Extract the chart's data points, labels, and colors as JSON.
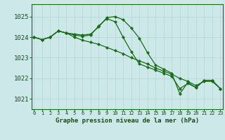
{
  "background_color": "#cce8e8",
  "grid_color": "#b8d8d8",
  "line_color": "#1a6b1a",
  "marker_color": "#1a6b1a",
  "title": "Graphe pression niveau de la mer (hPa)",
  "xlabel_hours": [
    0,
    1,
    2,
    3,
    4,
    5,
    6,
    7,
    8,
    9,
    10,
    11,
    12,
    13,
    14,
    15,
    16,
    17,
    18,
    19,
    20,
    21,
    22,
    23
  ],
  "yticks": [
    1021,
    1022,
    1023,
    1024,
    1025
  ],
  "ylim": [
    1020.5,
    1025.6
  ],
  "xlim": [
    -0.3,
    23.3
  ],
  "series": [
    [
      1024.0,
      1023.88,
      1024.0,
      1024.3,
      1024.2,
      1024.15,
      1024.1,
      1024.15,
      1024.5,
      1024.95,
      1025.0,
      1024.85,
      1024.45,
      1023.95,
      1023.25,
      1022.65,
      1022.45,
      1022.25,
      1021.25,
      1021.8,
      1021.55,
      1021.9,
      1021.9,
      1021.5
    ],
    [
      1024.0,
      1023.88,
      1024.0,
      1024.3,
      1024.2,
      1024.0,
      1023.85,
      1023.75,
      1023.65,
      1023.5,
      1023.35,
      1023.2,
      1023.0,
      1022.85,
      1022.7,
      1022.5,
      1022.35,
      1022.2,
      1022.0,
      1021.85,
      1021.65,
      1021.85,
      1021.85,
      1021.5
    ],
    [
      1024.0,
      1023.88,
      1024.0,
      1024.3,
      1024.2,
      1024.1,
      1024.05,
      1024.1,
      1024.55,
      1024.9,
      1024.75,
      1024.0,
      1023.3,
      1022.7,
      1022.55,
      1022.4,
      1022.25,
      1022.1,
      1021.5,
      1021.75,
      1021.55,
      1021.9,
      1021.9,
      1021.5
    ]
  ]
}
